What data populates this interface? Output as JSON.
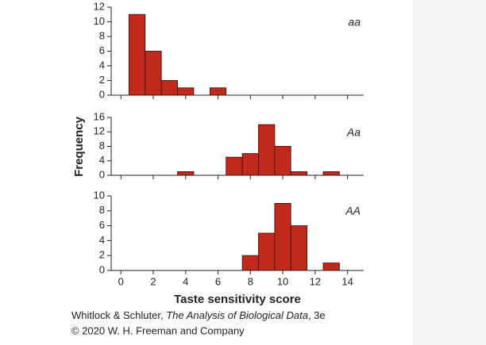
{
  "figure": {
    "ylabel": "Frequency",
    "credit": [
      "Whitlock & Schluter, ",
      "The Analysis of Biological Data",
      ", 3e"
    ],
    "copyright": "© 2020 W. H. Freeman and Company"
  },
  "chart_data": [
    {
      "type": "histogram",
      "annotation": "aa",
      "color": "#c1291d",
      "bins": [
        0.5,
        1.5,
        2.5,
        3.5,
        4.5,
        5.5,
        6.5,
        7.5,
        8.5,
        9.5,
        10.5,
        11.5,
        12.5,
        13.5
      ],
      "values": [
        11,
        6,
        2,
        1,
        0,
        1,
        0,
        0,
        0,
        0,
        0,
        0,
        0
      ],
      "xlim": [
        -0.6,
        15
      ],
      "xticks": [
        0,
        2,
        4,
        6,
        8,
        10,
        12,
        14
      ],
      "ylim": [
        0,
        12
      ],
      "yticks": [
        0,
        2,
        4,
        6,
        8,
        10,
        12
      ]
    },
    {
      "type": "histogram",
      "annotation": "Aa",
      "color": "#c1291d",
      "bins": [
        0.5,
        1.5,
        2.5,
        3.5,
        4.5,
        5.5,
        6.5,
        7.5,
        8.5,
        9.5,
        10.5,
        11.5,
        12.5,
        13.5
      ],
      "values": [
        0,
        0,
        0,
        1,
        0,
        0,
        5,
        6,
        14,
        8,
        1,
        0,
        1
      ],
      "xlim": [
        -0.6,
        15
      ],
      "xticks": [
        0,
        2,
        4,
        6,
        8,
        10,
        12,
        14
      ],
      "ylim": [
        0,
        16
      ],
      "yticks": [
        0,
        4,
        8,
        12,
        16
      ]
    },
    {
      "type": "histogram",
      "annotation": "AA",
      "color": "#c1291d",
      "bins": [
        0.5,
        1.5,
        2.5,
        3.5,
        4.5,
        5.5,
        6.5,
        7.5,
        8.5,
        9.5,
        10.5,
        11.5,
        12.5,
        13.5
      ],
      "values": [
        0,
        0,
        0,
        0,
        0,
        0,
        0,
        2,
        5,
        9,
        6,
        0,
        1
      ],
      "xlabel": "Taste sensitivity score",
      "xlim": [
        -0.6,
        15
      ],
      "xticks": [
        0,
        2,
        4,
        6,
        8,
        10,
        12,
        14
      ],
      "ylim": [
        0,
        10
      ],
      "yticks": [
        0,
        2,
        4,
        6,
        8,
        10
      ]
    }
  ]
}
